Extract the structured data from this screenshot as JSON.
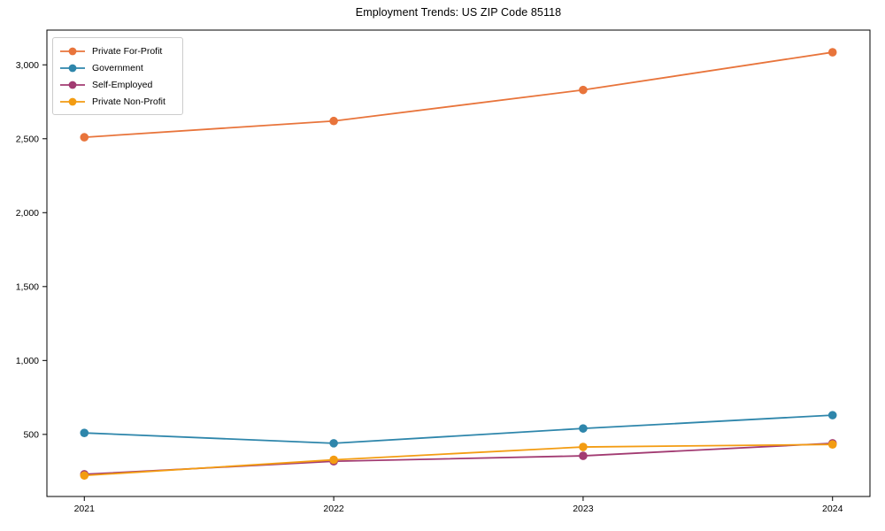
{
  "figure": {
    "background_color": "#ffffff"
  },
  "chart_data": {
    "type": "line",
    "title": "Employment Trends: US ZIP Code 85118",
    "categories": [
      "2021",
      "2022",
      "2023",
      "2024"
    ],
    "x": [
      2021,
      2022,
      2023,
      2024
    ],
    "series": [
      {
        "name": "Private For-Profit",
        "color": "#e8743b",
        "values": [
          2510,
          2620,
          2830,
          3085
        ]
      },
      {
        "name": "Government",
        "color": "#2e86ab",
        "values": [
          510,
          440,
          540,
          630
        ]
      },
      {
        "name": "Self-Employed",
        "color": "#a23b72",
        "values": [
          230,
          318,
          355,
          440
        ]
      },
      {
        "name": "Private Non-Profit",
        "color": "#f39c12",
        "values": [
          222,
          328,
          415,
          432
        ]
      }
    ],
    "xlabel": "",
    "ylabel": "",
    "xlim": [
      2020.85,
      2024.15
    ],
    "ylim": [
      80,
      3235
    ],
    "yticks": [
      500,
      1000,
      1500,
      2000,
      2500,
      3000
    ],
    "ytick_labels": [
      "500",
      "1,000",
      "1,500",
      "2,000",
      "2,500",
      "3,000"
    ],
    "grid": false,
    "legend_position": "upper-left",
    "axis_color": "#000000",
    "text_color": "#000000"
  }
}
